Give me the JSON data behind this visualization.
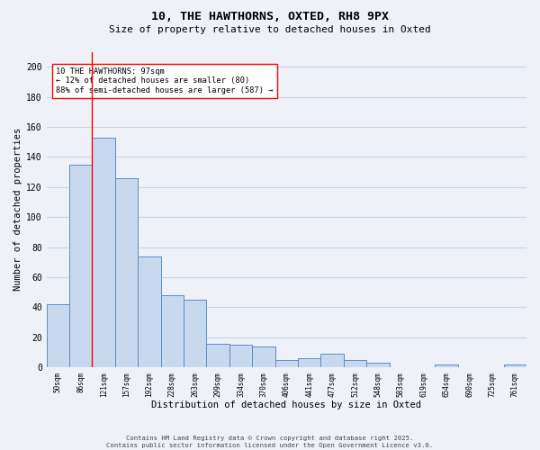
{
  "title1": "10, THE HAWTHORNS, OXTED, RH8 9PX",
  "title2": "Size of property relative to detached houses in Oxted",
  "xlabel": "Distribution of detached houses by size in Oxted",
  "ylabel": "Number of detached properties",
  "bar_color": "#c8d8ee",
  "bar_edge_color": "#5b8ec4",
  "categories": [
    "50sqm",
    "86sqm",
    "121sqm",
    "157sqm",
    "192sqm",
    "228sqm",
    "263sqm",
    "299sqm",
    "334sqm",
    "370sqm",
    "406sqm",
    "441sqm",
    "477sqm",
    "512sqm",
    "548sqm",
    "583sqm",
    "619sqm",
    "654sqm",
    "690sqm",
    "725sqm",
    "761sqm"
  ],
  "values": [
    42,
    135,
    153,
    126,
    74,
    48,
    45,
    16,
    15,
    14,
    5,
    6,
    9,
    5,
    3,
    0,
    0,
    2,
    0,
    0,
    2
  ],
  "red_line_x": 1.5,
  "annotation_line1": "10 THE HAWTHORNS: 97sqm",
  "annotation_line2": "← 12% of detached houses are smaller (80)",
  "annotation_line3": "88% of semi-detached houses are larger (587) →",
  "annotation_box_color": "white",
  "annotation_box_edge_color": "red",
  "ylim": [
    0,
    210
  ],
  "yticks": [
    0,
    20,
    40,
    60,
    80,
    100,
    120,
    140,
    160,
    180,
    200
  ],
  "grid_color": "#c8d4e8",
  "footer_line1": "Contains HM Land Registry data © Crown copyright and database right 2025.",
  "footer_line2": "Contains public sector information licensed under the Open Government Licence v3.0.",
  "bg_color": "#eef2f8"
}
